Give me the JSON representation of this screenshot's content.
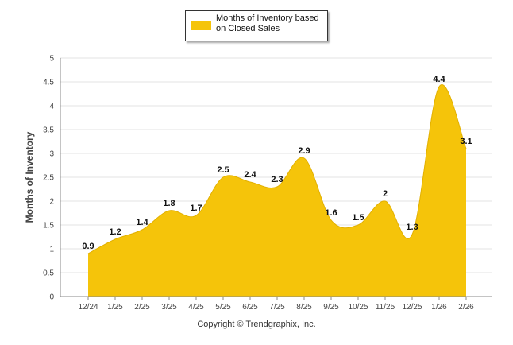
{
  "chart_data": {
    "type": "area",
    "categories": [
      "12/24",
      "1/25",
      "2/25",
      "3/25",
      "4/25",
      "5/25",
      "6/25",
      "7/25",
      "8/25",
      "9/25",
      "10/25",
      "11/25",
      "12/25",
      "1/26",
      "2/26"
    ],
    "series": [
      {
        "name": "Months of Inventory based on Closed Sales",
        "values": [
          0.9,
          1.2,
          1.4,
          1.8,
          1.7,
          2.5,
          2.4,
          2.3,
          2.9,
          1.6,
          1.5,
          2,
          1.3,
          4.4,
          3.1
        ]
      }
    ],
    "data_labels": [
      "0.9",
      "1.2",
      "1.4",
      "1.8",
      "1.7",
      "2.5",
      "2.4",
      "2.3",
      "2.9",
      "1.6",
      "1.5",
      "2",
      "1.3",
      "4.4",
      "3.1"
    ],
    "ylabel": "Months of Inventory",
    "xlabel": "",
    "ylim": [
      0,
      5
    ],
    "yticks": [
      "0",
      "0.5",
      "1",
      "1.5",
      "2",
      "2.5",
      "3",
      "3.5",
      "4",
      "4.5",
      "5"
    ],
    "ytick_values": [
      0,
      0.5,
      1,
      1.5,
      2,
      2.5,
      3,
      3.5,
      4,
      4.5,
      5
    ],
    "grid": true,
    "legend_position": "top-center",
    "fill_color": "#F5C40A",
    "grid_color": "#e3e3e3",
    "axis_color": "#888888"
  },
  "legend": {
    "label": "Months of Inventory based on Closed Sales"
  },
  "footer": {
    "copyright": "Copyright © Trendgraphix, Inc."
  }
}
